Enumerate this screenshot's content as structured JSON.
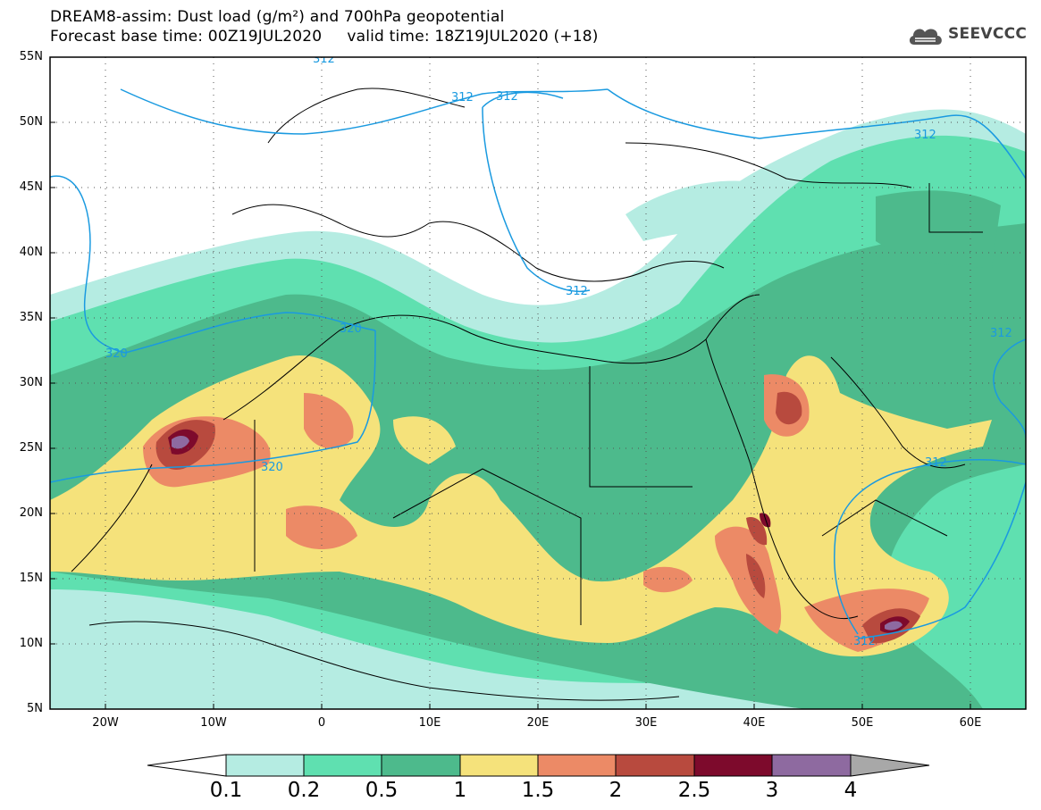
{
  "header": {
    "title_line1": "DREAM8-assim: Dust load (g/m²) and 700hPa geopotential",
    "title_line2": "Forecast base time: 00Z19JUL2020     valid time: 18Z19JUL2020 (+18)"
  },
  "logo": {
    "text": "SEEVCCC"
  },
  "map": {
    "lat_labels": [
      "55N",
      "50N",
      "45N",
      "40N",
      "35N",
      "30N",
      "25N",
      "20N",
      "15N",
      "10N",
      "5N"
    ],
    "lon_labels": [
      "20W",
      "10W",
      "0",
      "10E",
      "20E",
      "30E",
      "40E",
      "50E",
      "60E"
    ],
    "contour_labels": [
      "312",
      "312",
      "312",
      "312",
      "312",
      "312",
      "320",
      "320",
      "320",
      "312",
      "312"
    ]
  },
  "colorbar": {
    "labels": [
      "0.1",
      "0.2",
      "0.5",
      "1",
      "1.5",
      "2",
      "2.5",
      "3",
      "4"
    ],
    "colors": [
      "#b5ece2",
      "#5fe0b0",
      "#4dba8c",
      "#f5e27b",
      "#ec8a66",
      "#b84a3e",
      "#7d0a2c",
      "#8e6aa0",
      "#a8a8a8"
    ]
  },
  "colors": {
    "contour": "#1a9ae0",
    "border": "#000000"
  }
}
